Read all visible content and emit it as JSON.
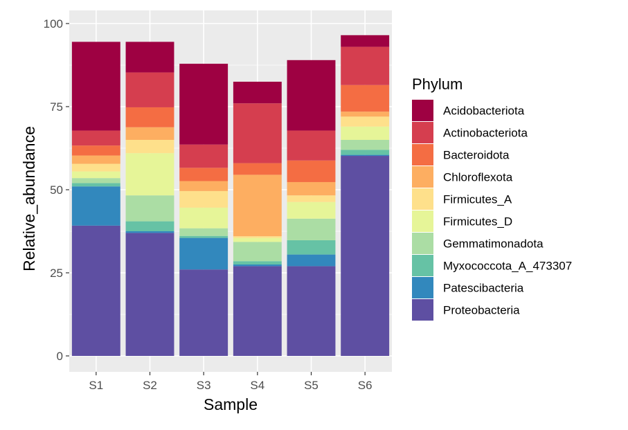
{
  "chart_data": {
    "type": "bar",
    "stacked": true,
    "title": "",
    "xlabel": "Sample",
    "ylabel": "Relative_abundance",
    "ylim": [
      0,
      100
    ],
    "yticks": [
      "0",
      "25",
      "50",
      "75",
      "100"
    ],
    "categories": [
      "S1",
      "S2",
      "S3",
      "S4",
      "S5",
      "S6"
    ],
    "legend": {
      "title": "Phylum",
      "position": "right"
    },
    "series": [
      {
        "name": "Proteobacteria",
        "color": "#5e4fa2",
        "values": [
          39.2,
          37.0,
          26.0,
          27.0,
          27.0,
          60.2
        ]
      },
      {
        "name": "Patescibacteria",
        "color": "#3288bd",
        "values": [
          11.8,
          0.5,
          9.5,
          0.5,
          3.5,
          0.3
        ]
      },
      {
        "name": "Myxococcota_A_473307",
        "color": "#66c2a5",
        "values": [
          1.0,
          3.0,
          0.6,
          1.0,
          4.3,
          1.5
        ]
      },
      {
        "name": "Gemmatimonadota",
        "color": "#abdda4",
        "values": [
          1.5,
          7.8,
          2.3,
          5.8,
          6.5,
          3.0
        ]
      },
      {
        "name": "Firmicutes_D",
        "color": "#e6f598",
        "values": [
          2.0,
          12.7,
          6.2,
          1.2,
          5.0,
          4.0
        ]
      },
      {
        "name": "Firmicutes_A",
        "color": "#fee08b",
        "values": [
          2.3,
          4.0,
          5.0,
          0.5,
          2.0,
          3.0
        ]
      },
      {
        "name": "Chloroflexota",
        "color": "#fdae61",
        "values": [
          2.5,
          3.8,
          3.0,
          18.5,
          4.0,
          1.5
        ]
      },
      {
        "name": "Bacteroidota",
        "color": "#f46d43",
        "values": [
          3.0,
          6.0,
          4.0,
          3.5,
          6.5,
          8.0
        ]
      },
      {
        "name": "Actinobacteriota",
        "color": "#d53e4f",
        "values": [
          4.5,
          10.5,
          7.0,
          18.0,
          9.0,
          11.5
        ]
      },
      {
        "name": "Acidobacteriota",
        "color": "#9e0142",
        "values": [
          26.7,
          9.2,
          24.3,
          6.5,
          21.2,
          3.5
        ]
      }
    ]
  }
}
